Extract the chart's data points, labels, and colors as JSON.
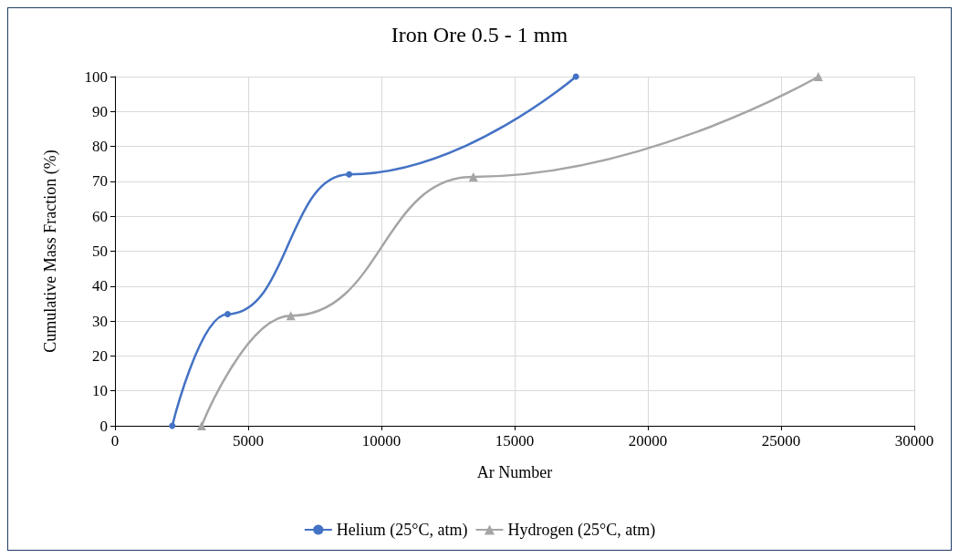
{
  "chart_data": {
    "type": "line",
    "title": "Iron Ore 0.5 - 1 mm",
    "xlabel": "Ar Number",
    "ylabel": "Cumulative Mass Fraction (%)",
    "xlim": [
      0,
      30000
    ],
    "xticks": [
      0,
      5000,
      10000,
      15000,
      20000,
      25000,
      30000
    ],
    "ylim": [
      0,
      100
    ],
    "yticks": [
      0,
      10,
      20,
      30,
      40,
      50,
      60,
      70,
      80,
      90,
      100
    ],
    "grid": true,
    "legend": "bottom",
    "series": [
      {
        "name": "Helium (25°C, atm)",
        "color": "#4472c4",
        "marker": "circle",
        "x": [
          2150,
          4230,
          8790,
          17300
        ],
        "values": [
          0,
          32,
          72,
          100
        ]
      },
      {
        "name": "Hydrogen (25°C, atm)",
        "color": "#a5a5a5",
        "marker": "triangle",
        "x": [
          3250,
          6600,
          13450,
          26400
        ],
        "values": [
          0,
          31.5,
          71.3,
          100
        ]
      }
    ]
  }
}
